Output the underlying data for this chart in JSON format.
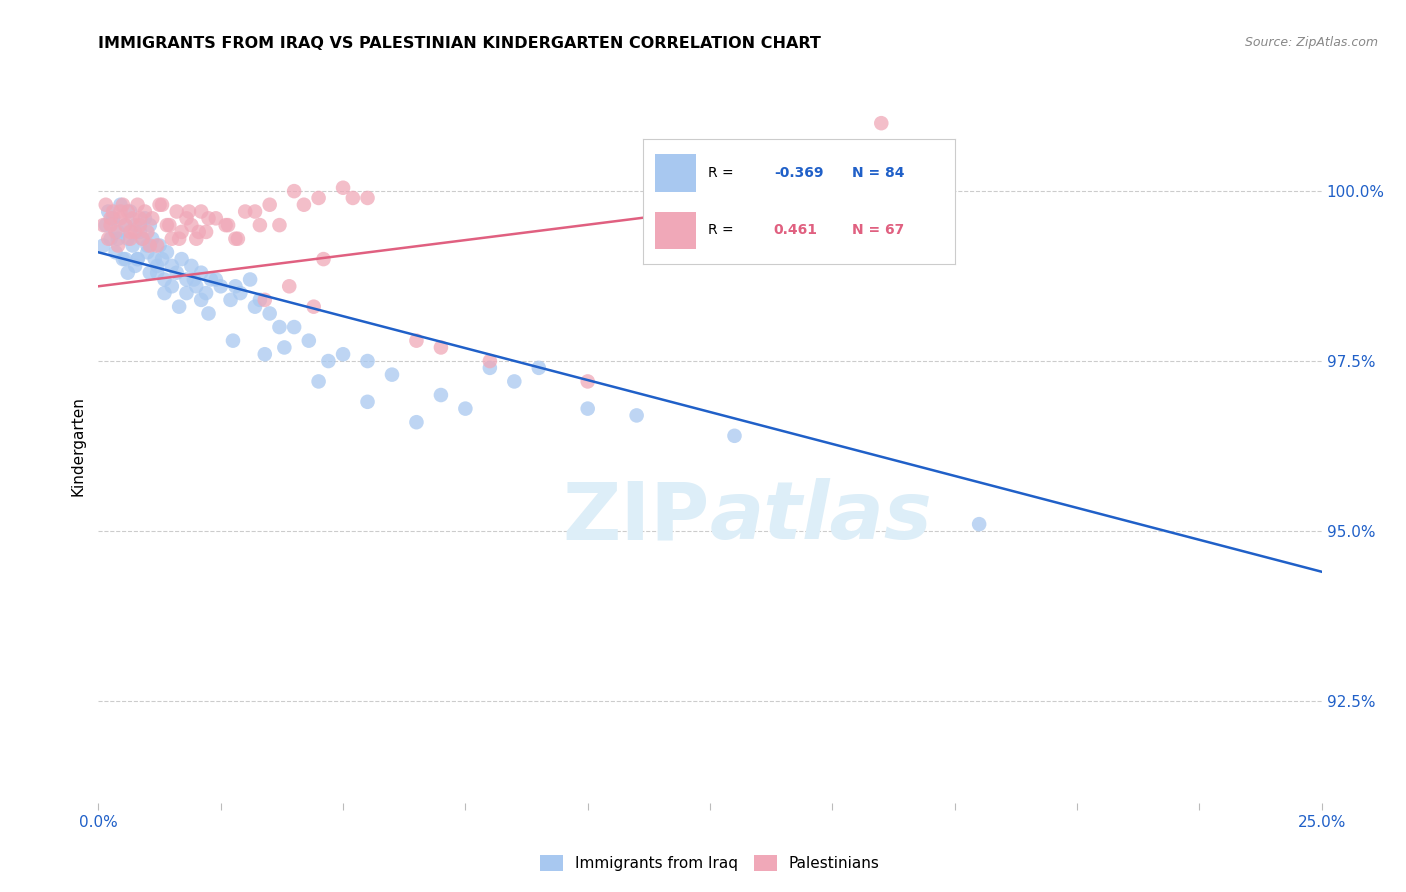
{
  "title": "IMMIGRANTS FROM IRAQ VS PALESTINIAN KINDERGARTEN CORRELATION CHART",
  "source": "Source: ZipAtlas.com",
  "ylabel": "Kindergarten",
  "ytick_values": [
    92.5,
    95.0,
    97.5,
    100.0
  ],
  "xmin": 0.0,
  "xmax": 25.0,
  "ymin": 91.0,
  "ymax": 101.5,
  "legend_r_iraq": "-0.369",
  "legend_n_iraq": "84",
  "legend_r_pal": "0.461",
  "legend_n_pal": "67",
  "color_iraq": "#a8c8f0",
  "color_pal": "#f0a8b8",
  "color_iraq_line": "#2060c8",
  "color_pal_line": "#e06080",
  "color_text_blue": "#2060c8",
  "color_text_pink": "#e06080",
  "watermark_color": "#ddeef8",
  "iraq_line_x0": 0.0,
  "iraq_line_y0": 99.1,
  "iraq_line_x1": 25.0,
  "iraq_line_y1": 94.4,
  "pal_line_x0": 0.0,
  "pal_line_y0": 98.6,
  "pal_line_x1": 16.0,
  "pal_line_y1": 100.05,
  "iraq_scatter_x": [
    0.1,
    0.15,
    0.2,
    0.25,
    0.3,
    0.35,
    0.4,
    0.45,
    0.5,
    0.55,
    0.6,
    0.65,
    0.7,
    0.75,
    0.8,
    0.85,
    0.9,
    0.95,
    1.0,
    1.05,
    1.1,
    1.15,
    1.2,
    1.25,
    1.3,
    1.35,
    1.4,
    1.5,
    1.6,
    1.7,
    1.8,
    1.9,
    2.0,
    2.1,
    2.2,
    2.3,
    2.5,
    2.7,
    2.9,
    3.1,
    3.3,
    3.5,
    3.7,
    4.0,
    4.3,
    4.7,
    5.0,
    5.5,
    6.0,
    7.0,
    7.5,
    8.0,
    9.0,
    10.0,
    11.0,
    13.0,
    18.0,
    0.3,
    0.6,
    0.8,
    1.0,
    1.2,
    1.5,
    1.8,
    2.1,
    2.4,
    2.8,
    3.2,
    3.8,
    4.5,
    5.5,
    6.5,
    8.5,
    0.4,
    0.55,
    0.75,
    1.05,
    1.35,
    1.65,
    1.95,
    2.25,
    2.75,
    3.4
  ],
  "iraq_scatter_y": [
    99.2,
    99.5,
    99.7,
    99.3,
    99.6,
    99.1,
    99.4,
    99.8,
    99.0,
    99.5,
    99.3,
    99.7,
    99.2,
    99.5,
    99.0,
    99.4,
    99.3,
    99.6,
    99.1,
    99.5,
    99.3,
    99.0,
    98.8,
    99.2,
    99.0,
    98.7,
    99.1,
    98.9,
    98.8,
    99.0,
    98.7,
    98.9,
    98.6,
    98.8,
    98.5,
    98.7,
    98.6,
    98.4,
    98.5,
    98.7,
    98.4,
    98.2,
    98.0,
    98.0,
    97.8,
    97.5,
    97.6,
    97.5,
    97.3,
    97.0,
    96.8,
    97.4,
    97.4,
    96.8,
    96.7,
    96.4,
    95.1,
    99.6,
    98.8,
    99.0,
    99.2,
    98.9,
    98.6,
    98.5,
    98.4,
    98.7,
    98.6,
    98.3,
    97.7,
    97.2,
    96.9,
    96.6,
    97.2,
    99.3,
    99.0,
    98.9,
    98.8,
    98.5,
    98.3,
    98.7,
    98.2,
    97.8,
    97.6
  ],
  "pal_scatter_x": [
    0.1,
    0.15,
    0.2,
    0.25,
    0.3,
    0.35,
    0.4,
    0.45,
    0.5,
    0.55,
    0.6,
    0.65,
    0.7,
    0.75,
    0.8,
    0.85,
    0.9,
    0.95,
    1.0,
    1.1,
    1.2,
    1.3,
    1.4,
    1.5,
    1.6,
    1.7,
    1.8,
    1.9,
    2.0,
    2.1,
    2.2,
    2.4,
    2.6,
    2.8,
    3.0,
    3.3,
    3.5,
    4.0,
    4.5,
    5.0,
    5.5,
    7.0,
    8.0,
    16.0,
    0.25,
    0.45,
    0.65,
    0.85,
    1.05,
    1.25,
    1.45,
    1.65,
    1.85,
    2.05,
    2.25,
    2.65,
    2.85,
    3.2,
    3.7,
    4.2,
    5.2,
    6.5,
    10.0,
    3.4,
    3.9,
    4.4,
    4.6
  ],
  "pal_scatter_y": [
    99.5,
    99.8,
    99.3,
    99.6,
    99.7,
    99.4,
    99.2,
    99.6,
    99.8,
    99.5,
    99.7,
    99.3,
    99.6,
    99.4,
    99.8,
    99.5,
    99.3,
    99.7,
    99.4,
    99.6,
    99.2,
    99.8,
    99.5,
    99.3,
    99.7,
    99.4,
    99.6,
    99.5,
    99.3,
    99.7,
    99.4,
    99.6,
    99.5,
    99.3,
    99.7,
    99.5,
    99.8,
    100.0,
    99.9,
    100.05,
    99.9,
    97.7,
    97.5,
    101.0,
    99.5,
    99.7,
    99.4,
    99.6,
    99.2,
    99.8,
    99.5,
    99.3,
    99.7,
    99.4,
    99.6,
    99.5,
    99.3,
    99.7,
    99.5,
    99.8,
    99.9,
    97.8,
    97.2,
    98.4,
    98.6,
    98.3,
    99.0
  ]
}
